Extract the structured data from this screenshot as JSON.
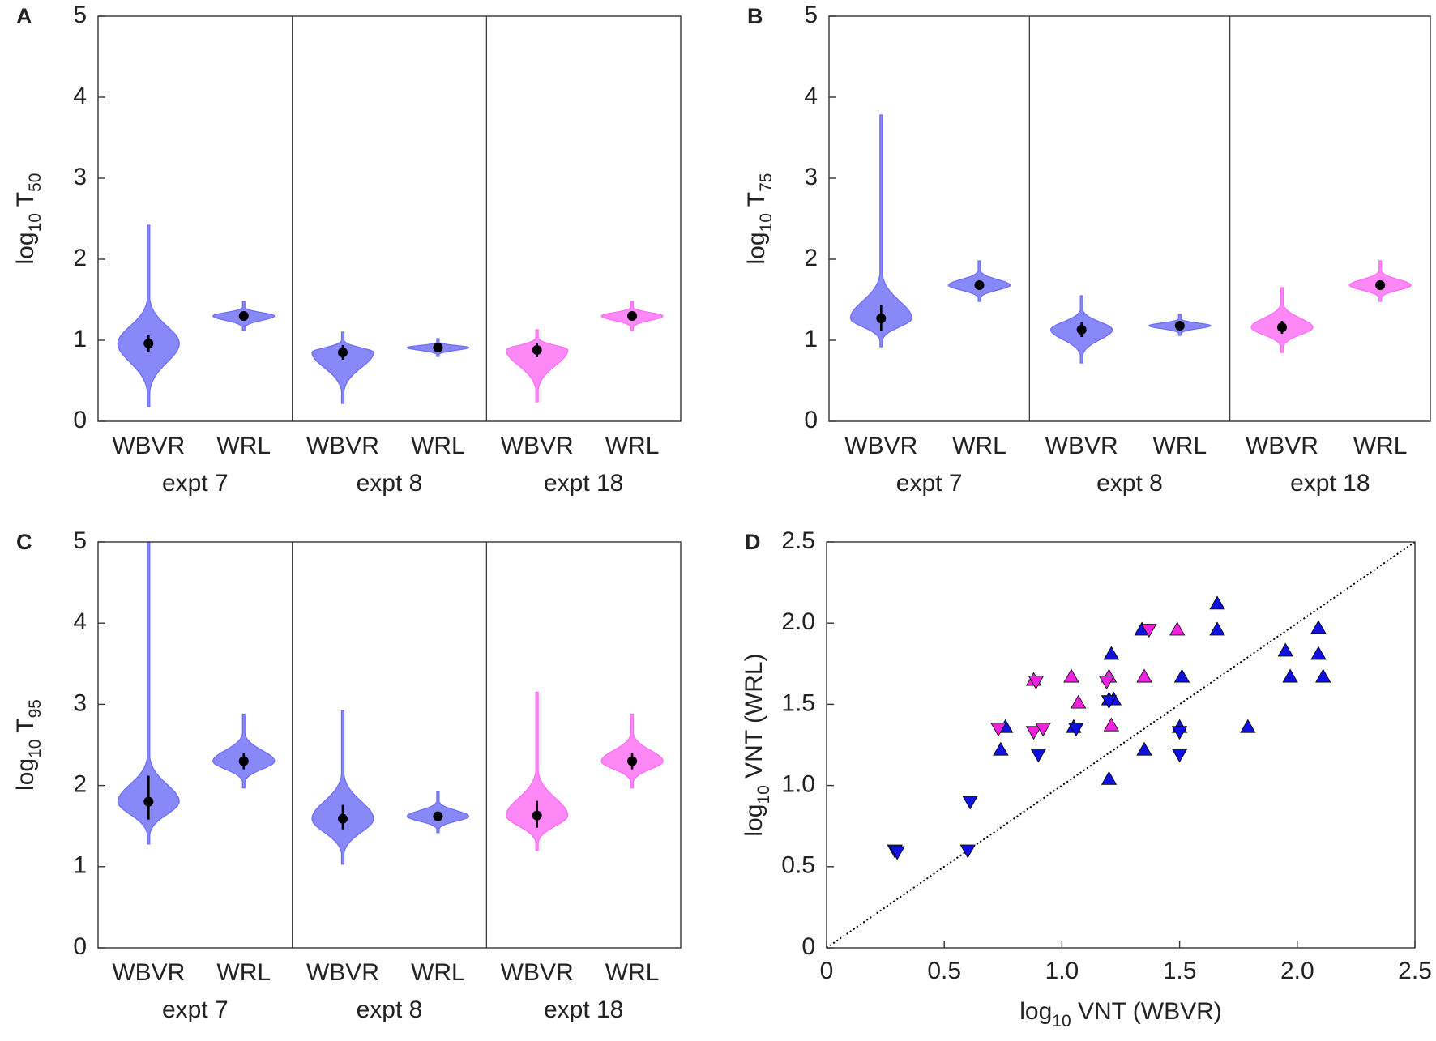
{
  "chart_data": [
    {
      "type": "violin",
      "panel": "A",
      "ylabel": [
        {
          "text": "log"
        },
        {
          "text": "10",
          "sub": true
        },
        {
          "text": " T"
        },
        {
          "text": "50",
          "sub": true
        }
      ],
      "ylim": [
        0,
        5
      ],
      "yticks": [
        0,
        1,
        2,
        3,
        4,
        5
      ],
      "groups": [
        {
          "name": "expt 7",
          "violins": [
            {
              "label": "WBVR",
              "color": "#6a6af8",
              "min": 0.18,
              "max": 2.42,
              "median": 0.96,
              "ci": [
                0.86,
                1.06
              ]
            },
            {
              "label": "WRL",
              "color": "#6a6af8",
              "min": 1.12,
              "max": 1.48,
              "median": 1.3,
              "ci": [
                1.27,
                1.33
              ]
            }
          ]
        },
        {
          "name": "expt 8",
          "violins": [
            {
              "label": "WBVR",
              "color": "#6a6af8",
              "min": 0.22,
              "max": 1.1,
              "median": 0.85,
              "ci": [
                0.76,
                0.94
              ]
            },
            {
              "label": "WRL",
              "color": "#6a6af8",
              "min": 0.8,
              "max": 1.02,
              "median": 0.91,
              "ci": [
                0.88,
                0.94
              ]
            }
          ]
        },
        {
          "name": "expt 18",
          "violins": [
            {
              "label": "WBVR",
              "color": "#ff6af5",
              "min": 0.24,
              "max": 1.13,
              "median": 0.88,
              "ci": [
                0.79,
                0.97
              ]
            },
            {
              "label": "WRL",
              "color": "#ff6af5",
              "min": 1.12,
              "max": 1.48,
              "median": 1.3,
              "ci": [
                1.27,
                1.33
              ]
            }
          ]
        }
      ]
    },
    {
      "type": "violin",
      "panel": "B",
      "ylabel": [
        {
          "text": "log"
        },
        {
          "text": "10",
          "sub": true
        },
        {
          "text": " T"
        },
        {
          "text": "75",
          "sub": true
        }
      ],
      "ylim": [
        0,
        5
      ],
      "yticks": [
        0,
        1,
        2,
        3,
        4,
        5
      ],
      "groups": [
        {
          "name": "expt 7",
          "violins": [
            {
              "label": "WBVR",
              "color": "#6a6af8",
              "min": 0.92,
              "max": 3.78,
              "median": 1.27,
              "ci": [
                1.12,
                1.43
              ]
            },
            {
              "label": "WRL",
              "color": "#6a6af8",
              "min": 1.48,
              "max": 1.98,
              "median": 1.68,
              "ci": [
                1.63,
                1.73
              ]
            }
          ]
        },
        {
          "name": "expt 8",
          "violins": [
            {
              "label": "WBVR",
              "color": "#6a6af8",
              "min": 0.72,
              "max": 1.55,
              "median": 1.13,
              "ci": [
                1.04,
                1.22
              ]
            },
            {
              "label": "WRL",
              "color": "#6a6af8",
              "min": 1.06,
              "max": 1.32,
              "median": 1.18,
              "ci": [
                1.15,
                1.21
              ]
            }
          ]
        },
        {
          "name": "expt 18",
          "violins": [
            {
              "label": "WBVR",
              "color": "#ff6af5",
              "min": 0.85,
              "max": 1.65,
              "median": 1.16,
              "ci": [
                1.08,
                1.24
              ]
            },
            {
              "label": "WRL",
              "color": "#ff6af5",
              "min": 1.48,
              "max": 1.98,
              "median": 1.68,
              "ci": [
                1.63,
                1.73
              ]
            }
          ]
        }
      ]
    },
    {
      "type": "violin",
      "panel": "C",
      "ylabel": [
        {
          "text": "log"
        },
        {
          "text": "10",
          "sub": true
        },
        {
          "text": " T"
        },
        {
          "text": "95",
          "sub": true
        }
      ],
      "ylim": [
        0,
        5
      ],
      "yticks": [
        0,
        1,
        2,
        3,
        4,
        5
      ],
      "groups": [
        {
          "name": "expt 7",
          "violins": [
            {
              "label": "WBVR",
              "color": "#6a6af8",
              "min": 1.28,
              "max": 5,
              "median": 1.8,
              "ci": [
                1.58,
                2.12
              ]
            },
            {
              "label": "WRL",
              "color": "#6a6af8",
              "min": 1.97,
              "max": 2.88,
              "median": 2.3,
              "ci": [
                2.2,
                2.4
              ]
            }
          ]
        },
        {
          "name": "expt 8",
          "violins": [
            {
              "label": "WBVR",
              "color": "#6a6af8",
              "min": 1.03,
              "max": 2.92,
              "median": 1.59,
              "ci": [
                1.46,
                1.76
              ]
            },
            {
              "label": "WRL",
              "color": "#6a6af8",
              "min": 1.42,
              "max": 1.93,
              "median": 1.62,
              "ci": [
                1.57,
                1.67
              ]
            }
          ]
        },
        {
          "name": "expt 18",
          "violins": [
            {
              "label": "WBVR",
              "color": "#ff6af5",
              "min": 1.2,
              "max": 3.15,
              "median": 1.63,
              "ci": [
                1.48,
                1.81
              ]
            },
            {
              "label": "WRL",
              "color": "#ff6af5",
              "min": 1.97,
              "max": 2.88,
              "median": 2.3,
              "ci": [
                2.2,
                2.4
              ]
            }
          ]
        }
      ]
    },
    {
      "type": "scatter",
      "panel": "D",
      "xlabel": [
        {
          "text": "log"
        },
        {
          "text": "10",
          "sub": true
        },
        {
          "text": " VNT (WBVR)"
        }
      ],
      "ylabel": [
        {
          "text": "log"
        },
        {
          "text": "10",
          "sub": true
        },
        {
          "text": " VNT (WRL)"
        }
      ],
      "xlim": [
        0,
        2.5
      ],
      "ylim": [
        0,
        2.5
      ],
      "xticks": [
        0,
        0.5,
        {
          "value": 1,
          "label": "1.0"
        },
        1.5,
        {
          "value": 2,
          "label": "2.0"
        },
        2.5
      ],
      "yticks": [
        0,
        0.5,
        {
          "value": 1,
          "label": "1.0"
        },
        1.5,
        {
          "value": 2,
          "label": "2.0"
        },
        2.5
      ],
      "diagonal": true,
      "series": [
        {
          "color": "#1010e0",
          "marker": "up",
          "x": [
            0.76,
            0.74,
            1.05,
            1.21,
            1.2,
            1.22,
            1.2,
            1.34,
            1.35,
            1.51,
            1.5,
            1.66,
            1.66,
            1.79,
            1.95,
            1.97,
            2.09,
            2.09,
            2.11
          ],
          "y": [
            1.36,
            1.22,
            1.36,
            1.81,
            1.53,
            1.53,
            1.04,
            1.96,
            1.22,
            1.67,
            1.36,
            2.12,
            1.96,
            1.36,
            1.83,
            1.67,
            1.97,
            1.81,
            1.67
          ]
        },
        {
          "color": "#1010e0",
          "marker": "down",
          "x": [
            0.29,
            0.3,
            0.6,
            0.61,
            0.9,
            1.06,
            1.2,
            1.5,
            1.5
          ],
          "y": [
            0.6,
            0.59,
            0.6,
            0.9,
            1.19,
            1.35,
            1.52,
            1.19,
            1.33
          ]
        },
        {
          "color": "#ee22dd",
          "marker": "up",
          "x": [
            0.88,
            1.04,
            1.07,
            1.2,
            1.21,
            1.35,
            1.49
          ],
          "y": [
            1.65,
            1.67,
            1.51,
            1.67,
            1.37,
            1.67,
            1.96
          ]
        },
        {
          "color": "#ee22dd",
          "marker": "down",
          "x": [
            0.73,
            0.88,
            0.92,
            0.89,
            1.19,
            1.37
          ],
          "y": [
            1.35,
            1.33,
            1.35,
            1.64,
            1.64,
            1.96
          ]
        }
      ]
    }
  ]
}
